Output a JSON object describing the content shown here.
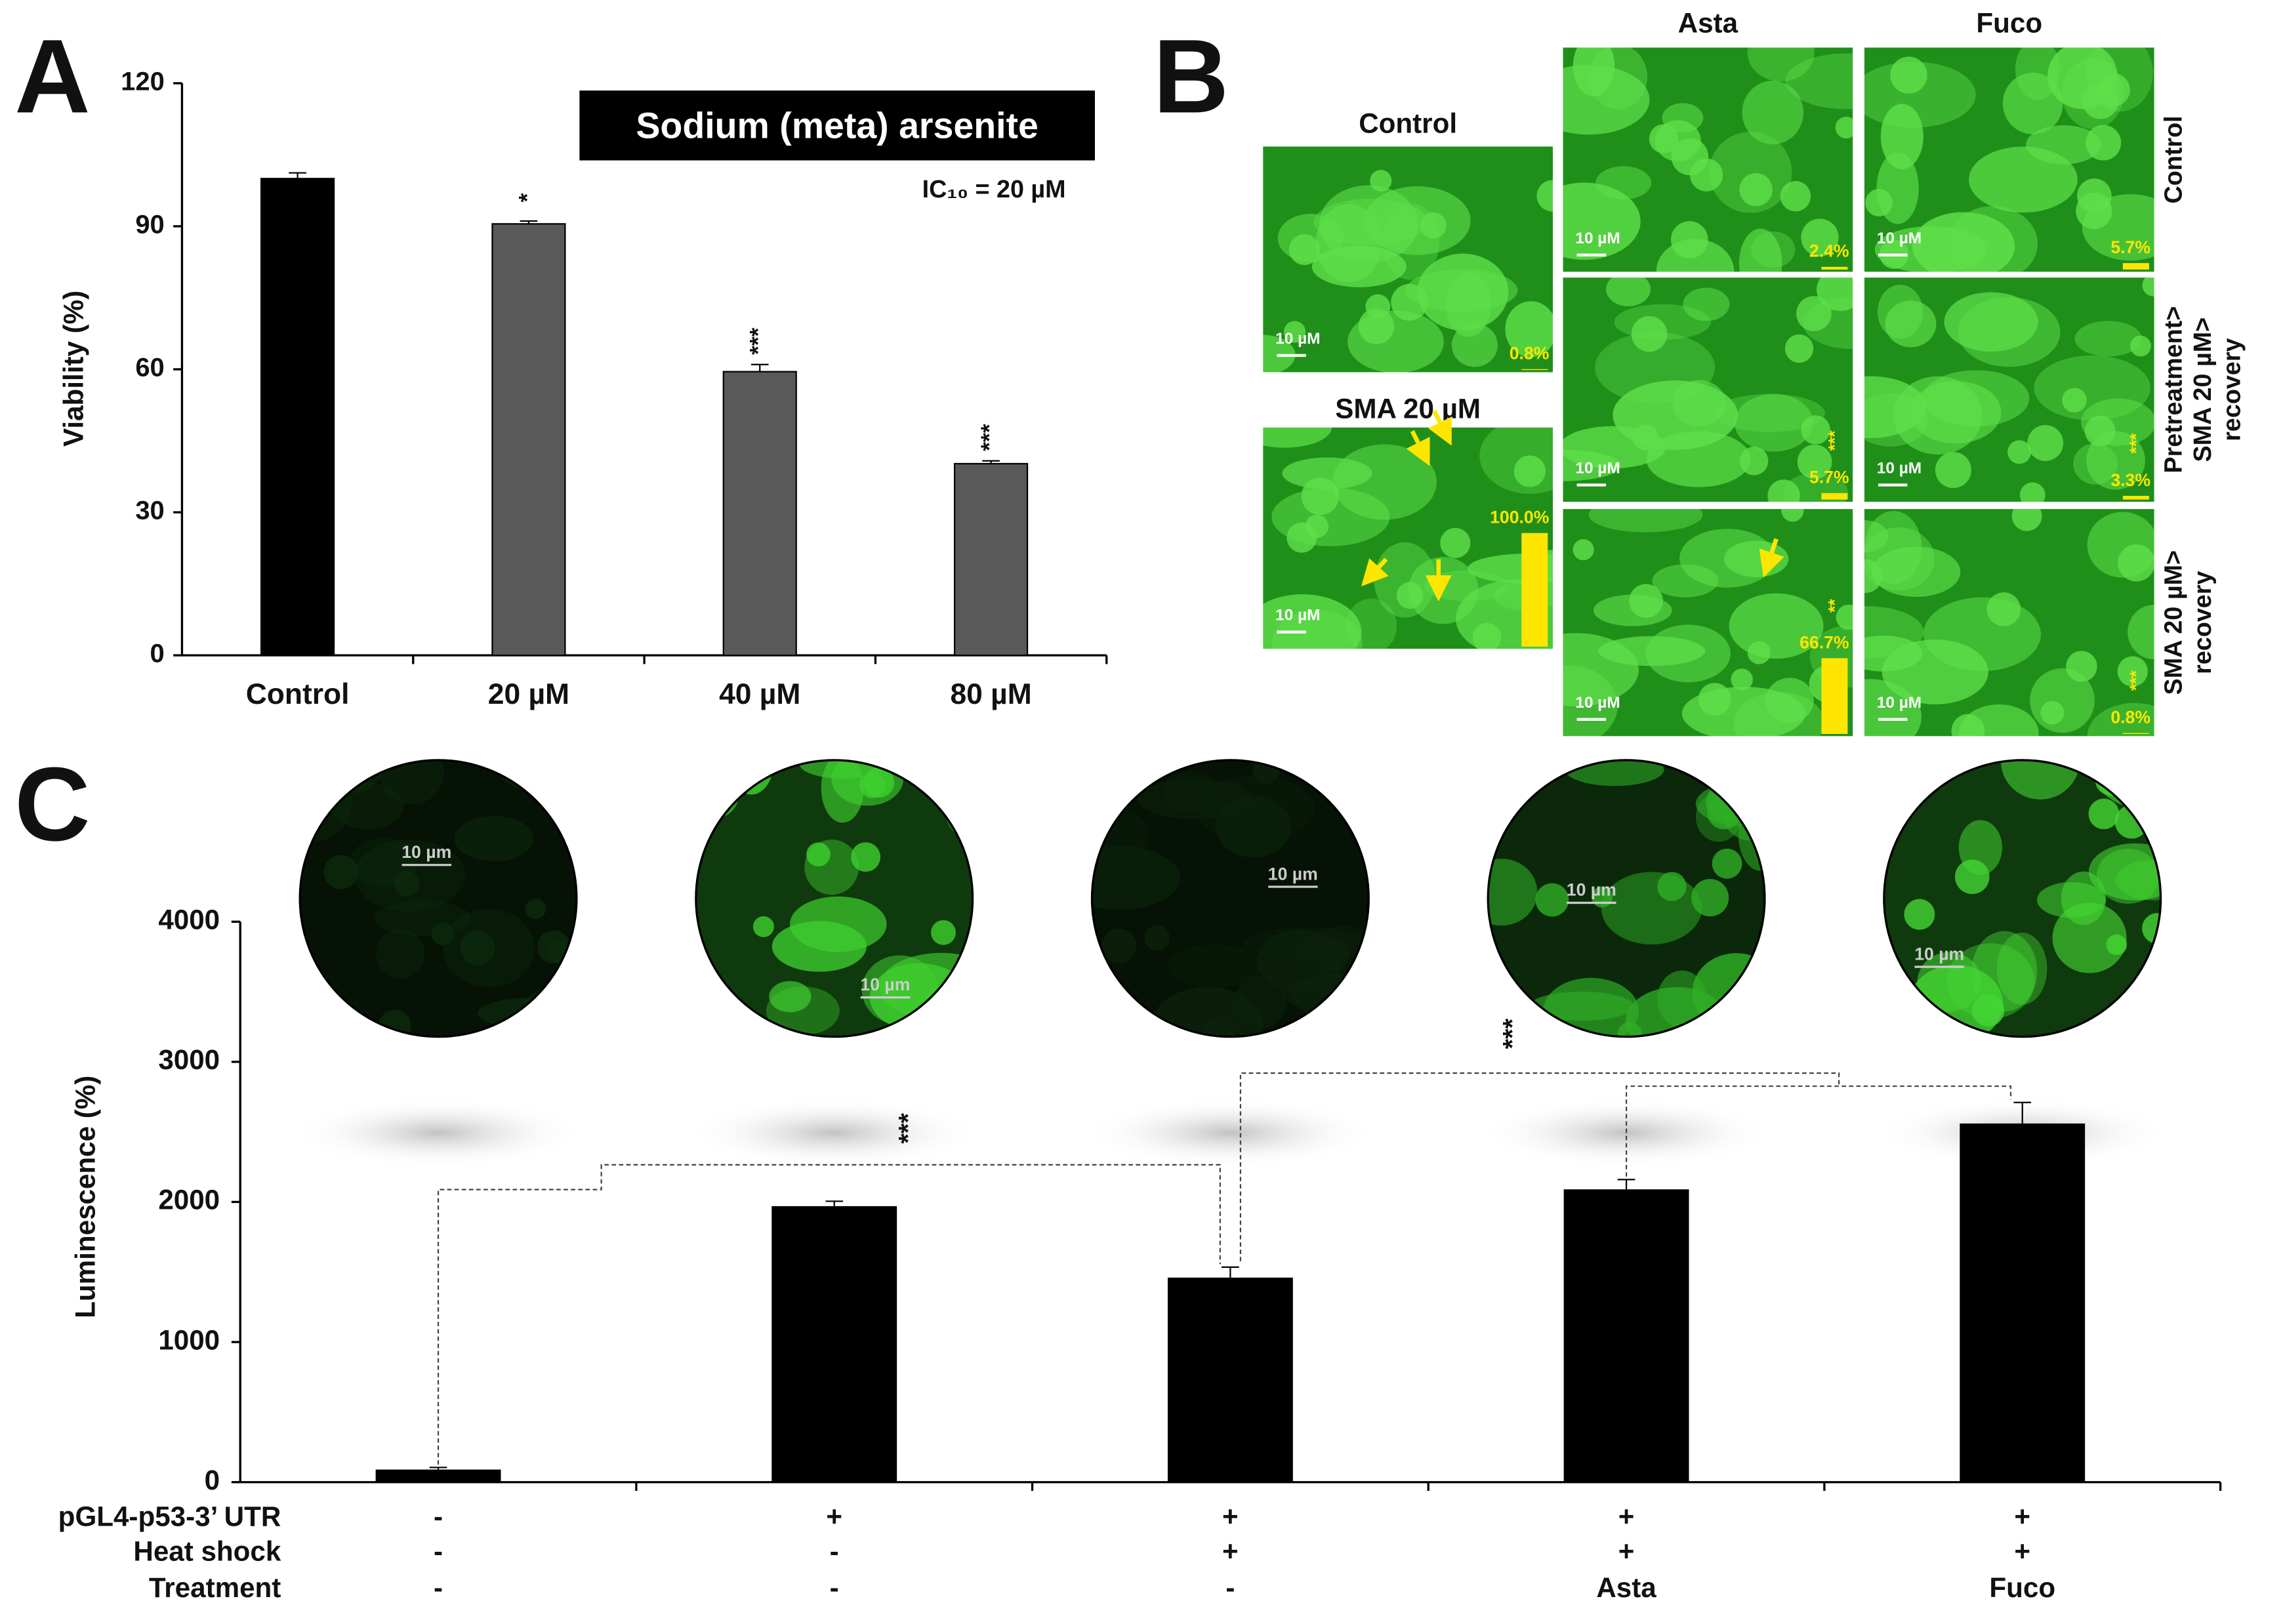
{
  "panel_labels": [
    "A",
    "B",
    "C"
  ],
  "chart_data": [
    {
      "type": "bar",
      "title": "Sodium (meta) arsenite",
      "annotation": "IC₁₀ = 20 µM",
      "ylabel": "Viability (%)",
      "categories": [
        "Control",
        "20 µM",
        "40 µM",
        "80 µM"
      ],
      "values": [
        100,
        90.5,
        59.5,
        40.2
      ],
      "errors": [
        1.2,
        0.6,
        1.5,
        0.6
      ],
      "significance": [
        null,
        "*",
        "***",
        "***"
      ],
      "colors": [
        "#000000",
        "#595959",
        "#595959",
        "#595959"
      ],
      "ylim": [
        0,
        120
      ],
      "yticks": [
        0,
        30,
        60,
        90,
        120
      ]
    },
    {
      "type": "bar",
      "ylabel": "Luminescence (%)",
      "values": [
        90,
        1970,
        1460,
        2090,
        2560
      ],
      "errors": [
        15,
        35,
        75,
        70,
        150
      ],
      "color": "#000000",
      "ylim": [
        0,
        4000
      ],
      "yticks": [
        0,
        1000,
        2000,
        3000,
        4000
      ],
      "conditions": [
        {
          "label": "pGL4-p53-3’ UTR",
          "values": [
            "-",
            "+",
            "+",
            "+",
            "+"
          ]
        },
        {
          "label": "Heat shock",
          "values": [
            "-",
            "-",
            "+",
            "+",
            "+"
          ]
        },
        {
          "label": "Treatment",
          "values": [
            "-",
            "-",
            "-",
            "Asta",
            "Fuco"
          ]
        }
      ],
      "brackets": [
        {
          "label": "***"
        },
        {
          "label": "***"
        }
      ],
      "micrograph_scale_labels": [
        "10 µm",
        "10 µm",
        "10 µm",
        "10 µm",
        "10 µm"
      ]
    }
  ],
  "panel_b": {
    "column_titles": [
      "Asta",
      "Fuco"
    ],
    "row_titles": [
      [
        "Control"
      ],
      [
        "Pretreatment>",
        "SMA 20 µM>",
        "recovery"
      ],
      [
        "SMA 20 µM>",
        "recovery"
      ]
    ],
    "side_images": [
      {
        "title": "Control",
        "scale_label": "10 µM",
        "percent": 0.8,
        "percent_label": "0.8%"
      },
      {
        "title": "SMA 20 µM",
        "scale_label": "10 µM",
        "percent": 100,
        "percent_label": "100.0%"
      }
    ],
    "grid": [
      [
        {
          "scale_label": "10 µM",
          "percent": 2.4,
          "percent_label": "2.4%"
        },
        {
          "scale_label": "10 µM",
          "percent": 5.7,
          "percent_label": "5.7%"
        }
      ],
      [
        {
          "scale_label": "10 µM",
          "percent": 5.7,
          "percent_label": "5.7%",
          "significance": "***"
        },
        {
          "scale_label": "10 µM",
          "percent": 3.3,
          "percent_label": "3.3%",
          "significance": "***"
        }
      ],
      [
        {
          "scale_label": "10 µM",
          "percent": 66.7,
          "percent_label": "66.7%",
          "significance": "**"
        },
        {
          "scale_label": "10 µM",
          "percent": 0.8,
          "percent_label": "0.8%",
          "significance": "***"
        }
      ]
    ]
  }
}
